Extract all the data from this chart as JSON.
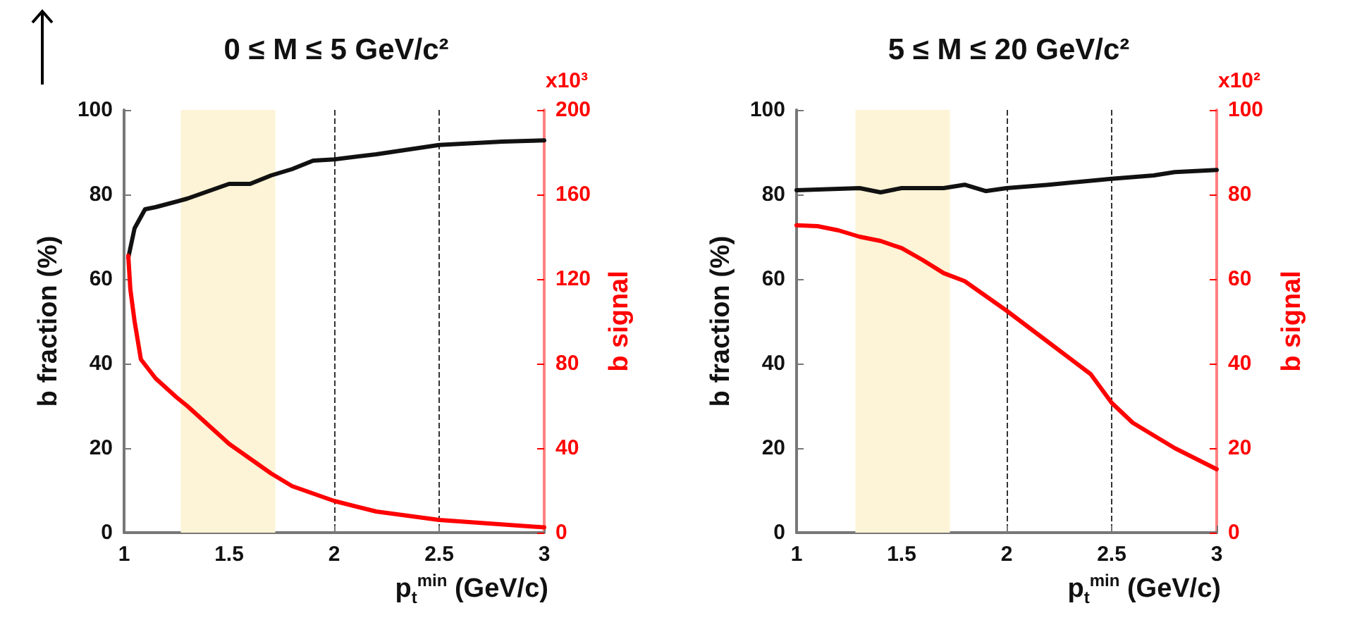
{
  "chart_data": [
    {
      "type": "line",
      "title": "0 ≤ M ≤ 5 GeV/c²",
      "xlabel": "p$_{t}$$^{min}$ (GeV/c)",
      "ylabel": "b fraction (%)",
      "y2label": "b signal",
      "annotations": [
        "x10³"
      ],
      "xlim": [
        1,
        3
      ],
      "xticks": [
        1,
        1.5,
        2,
        2.5,
        3
      ],
      "ylim": [
        0,
        100
      ],
      "yticks": [
        0,
        20,
        40,
        60,
        80,
        100
      ],
      "y2lim": [
        0,
        200
      ],
      "y2ticks": [
        0,
        40,
        80,
        120,
        160,
        200
      ],
      "grid": "x",
      "marker": "none",
      "line_style": "solid",
      "bands": [
        {
          "axis": "x",
          "from": 1.27,
          "to": 1.72,
          "color": "#fdf3d6"
        }
      ],
      "series": [
        {
          "color": "#111111",
          "x": [
            1.02,
            1.05,
            1.1,
            1.15,
            1.3,
            1.5,
            1.6,
            1.7,
            1.8,
            1.9,
            2.0,
            2.2,
            2.5,
            2.8,
            3.0
          ],
          "values": [
            65,
            72,
            76.5,
            77,
            79,
            82.5,
            82.5,
            84.5,
            86,
            88,
            88.3,
            89.5,
            91.7,
            92.5,
            92.8
          ]
        },
        {
          "color": "#ff0000",
          "axis": "y2",
          "x": [
            1.02,
            1.03,
            1.05,
            1.08,
            1.15,
            1.25,
            1.3,
            1.5,
            1.7,
            1.8,
            2.0,
            2.2,
            2.5,
            3.0
          ],
          "values": [
            131,
            115,
            100,
            82,
            73,
            64,
            60,
            42,
            28,
            22,
            15,
            10,
            6,
            2.5
          ]
        }
      ]
    },
    {
      "type": "line",
      "title": "5 ≤ M ≤ 20 GeV/c²",
      "xlabel": "p$_{t}$$^{min}$ (GeV/c)",
      "ylabel": "b fraction (%)",
      "y2label": "b signal",
      "annotations": [
        "x10²"
      ],
      "xlim": [
        1,
        3
      ],
      "xticks": [
        1,
        1.5,
        2,
        2.5,
        3
      ],
      "ylim": [
        0,
        100
      ],
      "yticks": [
        0,
        20,
        40,
        60,
        80,
        100
      ],
      "y2lim": [
        0,
        100
      ],
      "y2ticks": [
        0,
        20,
        40,
        60,
        80,
        100
      ],
      "grid": "x",
      "marker": "none",
      "line_style": "solid",
      "bands": [
        {
          "axis": "x",
          "from": 1.28,
          "to": 1.73,
          "color": "#fdf3d6"
        }
      ],
      "series": [
        {
          "color": "#111111",
          "x": [
            1.0,
            1.3,
            1.4,
            1.5,
            1.7,
            1.8,
            1.9,
            2.0,
            2.2,
            2.5,
            2.7,
            2.8,
            3.0
          ],
          "values": [
            81,
            81.5,
            80.5,
            81.5,
            81.5,
            82.3,
            80.8,
            81.5,
            82.3,
            83.7,
            84.5,
            85.3,
            85.8
          ]
        },
        {
          "color": "#ff0000",
          "axis": "y2",
          "x": [
            1.0,
            1.1,
            1.2,
            1.3,
            1.4,
            1.5,
            1.6,
            1.7,
            1.8,
            2.0,
            2.2,
            2.4,
            2.5,
            2.6,
            2.8,
            3.0
          ],
          "values": [
            72.7,
            72.5,
            71.5,
            70,
            69,
            67.3,
            64.5,
            61.4,
            59.5,
            52.5,
            45,
            37.5,
            30.7,
            26,
            20,
            15
          ]
        }
      ]
    }
  ]
}
